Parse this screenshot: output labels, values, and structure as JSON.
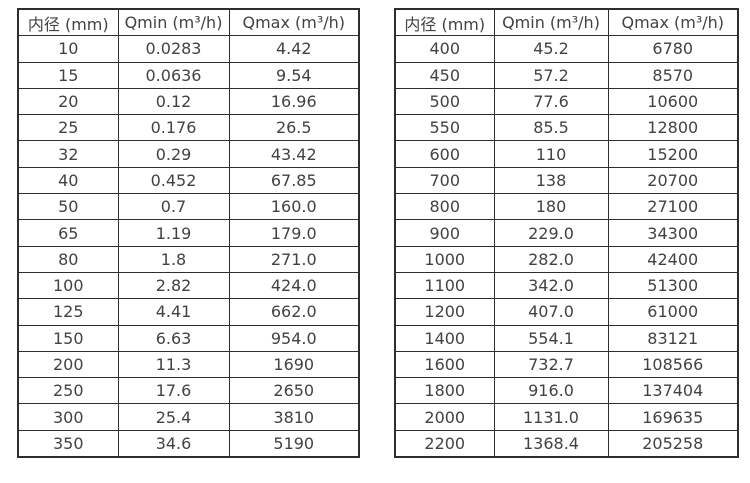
{
  "page": {
    "background_color": "#ffffff",
    "text_color": "#424242",
    "border_color": "#2e2e2e"
  },
  "tables": [
    {
      "name": "flow-table-small-diameters",
      "headers": [
        "内径 (mm)",
        "Qmin (m³/h)",
        "Qmax (m³/h)"
      ],
      "rows": [
        [
          "10",
          "0.0283",
          "4.42"
        ],
        [
          "15",
          "0.0636",
          "9.54"
        ],
        [
          "20",
          "0.12",
          "16.96"
        ],
        [
          "25",
          "0.176",
          "26.5"
        ],
        [
          "32",
          "0.29",
          "43.42"
        ],
        [
          "40",
          "0.452",
          "67.85"
        ],
        [
          "50",
          "0.7",
          "160.0"
        ],
        [
          "65",
          "1.19",
          "179.0"
        ],
        [
          "80",
          "1.8",
          "271.0"
        ],
        [
          "100",
          "2.82",
          "424.0"
        ],
        [
          "125",
          "4.41",
          "662.0"
        ],
        [
          "150",
          "6.63",
          "954.0"
        ],
        [
          "200",
          "11.3",
          "1690"
        ],
        [
          "250",
          "17.6",
          "2650"
        ],
        [
          "300",
          "25.4",
          "3810"
        ],
        [
          "350",
          "34.6",
          "5190"
        ]
      ]
    },
    {
      "name": "flow-table-large-diameters",
      "headers": [
        "内径 (mm)",
        "Qmin (m³/h)",
        "Qmax (m³/h)"
      ],
      "rows": [
        [
          "400",
          "45.2",
          "6780"
        ],
        [
          "450",
          "57.2",
          "8570"
        ],
        [
          "500",
          "77.6",
          "10600"
        ],
        [
          "550",
          "85.5",
          "12800"
        ],
        [
          "600",
          "110",
          "15200"
        ],
        [
          "700",
          "138",
          "20700"
        ],
        [
          "800",
          "180",
          "27100"
        ],
        [
          "900",
          "229.0",
          "34300"
        ],
        [
          "1000",
          "282.0",
          "42400"
        ],
        [
          "1100",
          "342.0",
          "51300"
        ],
        [
          "1200",
          "407.0",
          "61000"
        ],
        [
          "1400",
          "554.1",
          "83121"
        ],
        [
          "1600",
          "732.7",
          "108566"
        ],
        [
          "1800",
          "916.0",
          "137404"
        ],
        [
          "2000",
          "1131.0",
          "169635"
        ],
        [
          "2200",
          "1368.4",
          "205258"
        ]
      ]
    }
  ]
}
